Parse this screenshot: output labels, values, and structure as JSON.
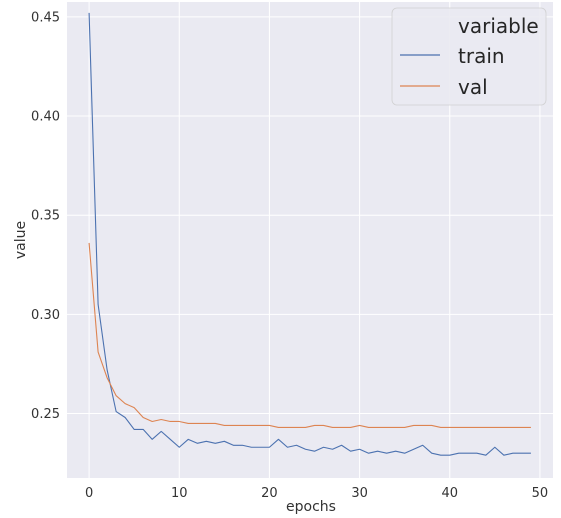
{
  "chart_data": {
    "type": "line",
    "title": "",
    "xlabel": "epochs",
    "ylabel": "value",
    "xlim": [
      -2.45,
      51.45
    ],
    "ylim": [
      0.2175,
      0.4575
    ],
    "xticks": [
      0,
      10,
      20,
      30,
      40,
      50
    ],
    "yticks": [
      0.25,
      0.3,
      0.35,
      0.4,
      0.45
    ],
    "xtick_labels": [
      "0",
      "10",
      "20",
      "30",
      "40",
      "50"
    ],
    "ytick_labels": [
      "0.25",
      "0.30",
      "0.35",
      "0.40",
      "0.45"
    ],
    "grid": true,
    "background": "#eaeaf2",
    "legend": {
      "title": "variable",
      "placement": "top-right"
    },
    "x": [
      0,
      1,
      2,
      3,
      4,
      5,
      6,
      7,
      8,
      9,
      10,
      11,
      12,
      13,
      14,
      15,
      16,
      17,
      18,
      19,
      20,
      21,
      22,
      23,
      24,
      25,
      26,
      27,
      28,
      29,
      30,
      31,
      32,
      33,
      34,
      35,
      36,
      37,
      38,
      39,
      40,
      41,
      42,
      43,
      44,
      45,
      46,
      47,
      48,
      49
    ],
    "series": [
      {
        "name": "train",
        "color": "#4c72b0",
        "values": [
          0.452,
          0.305,
          0.272,
          0.251,
          0.248,
          0.242,
          0.242,
          0.237,
          0.241,
          0.237,
          0.233,
          0.237,
          0.235,
          0.236,
          0.235,
          0.236,
          0.234,
          0.234,
          0.233,
          0.233,
          0.233,
          0.237,
          0.233,
          0.234,
          0.232,
          0.231,
          0.233,
          0.232,
          0.234,
          0.231,
          0.232,
          0.23,
          0.231,
          0.23,
          0.231,
          0.23,
          0.232,
          0.234,
          0.23,
          0.229,
          0.229,
          0.23,
          0.23,
          0.23,
          0.229,
          0.233,
          0.229,
          0.23,
          0.23,
          0.23
        ]
      },
      {
        "name": "val",
        "color": "#dd8452",
        "values": [
          0.336,
          0.281,
          0.268,
          0.259,
          0.255,
          0.253,
          0.248,
          0.246,
          0.247,
          0.246,
          0.246,
          0.245,
          0.245,
          0.245,
          0.245,
          0.244,
          0.244,
          0.244,
          0.244,
          0.244,
          0.244,
          0.243,
          0.243,
          0.243,
          0.243,
          0.244,
          0.244,
          0.243,
          0.243,
          0.243,
          0.244,
          0.243,
          0.243,
          0.243,
          0.243,
          0.243,
          0.244,
          0.244,
          0.244,
          0.243,
          0.243,
          0.243,
          0.243,
          0.243,
          0.243,
          0.243,
          0.243,
          0.243,
          0.243,
          0.243
        ]
      }
    ]
  }
}
